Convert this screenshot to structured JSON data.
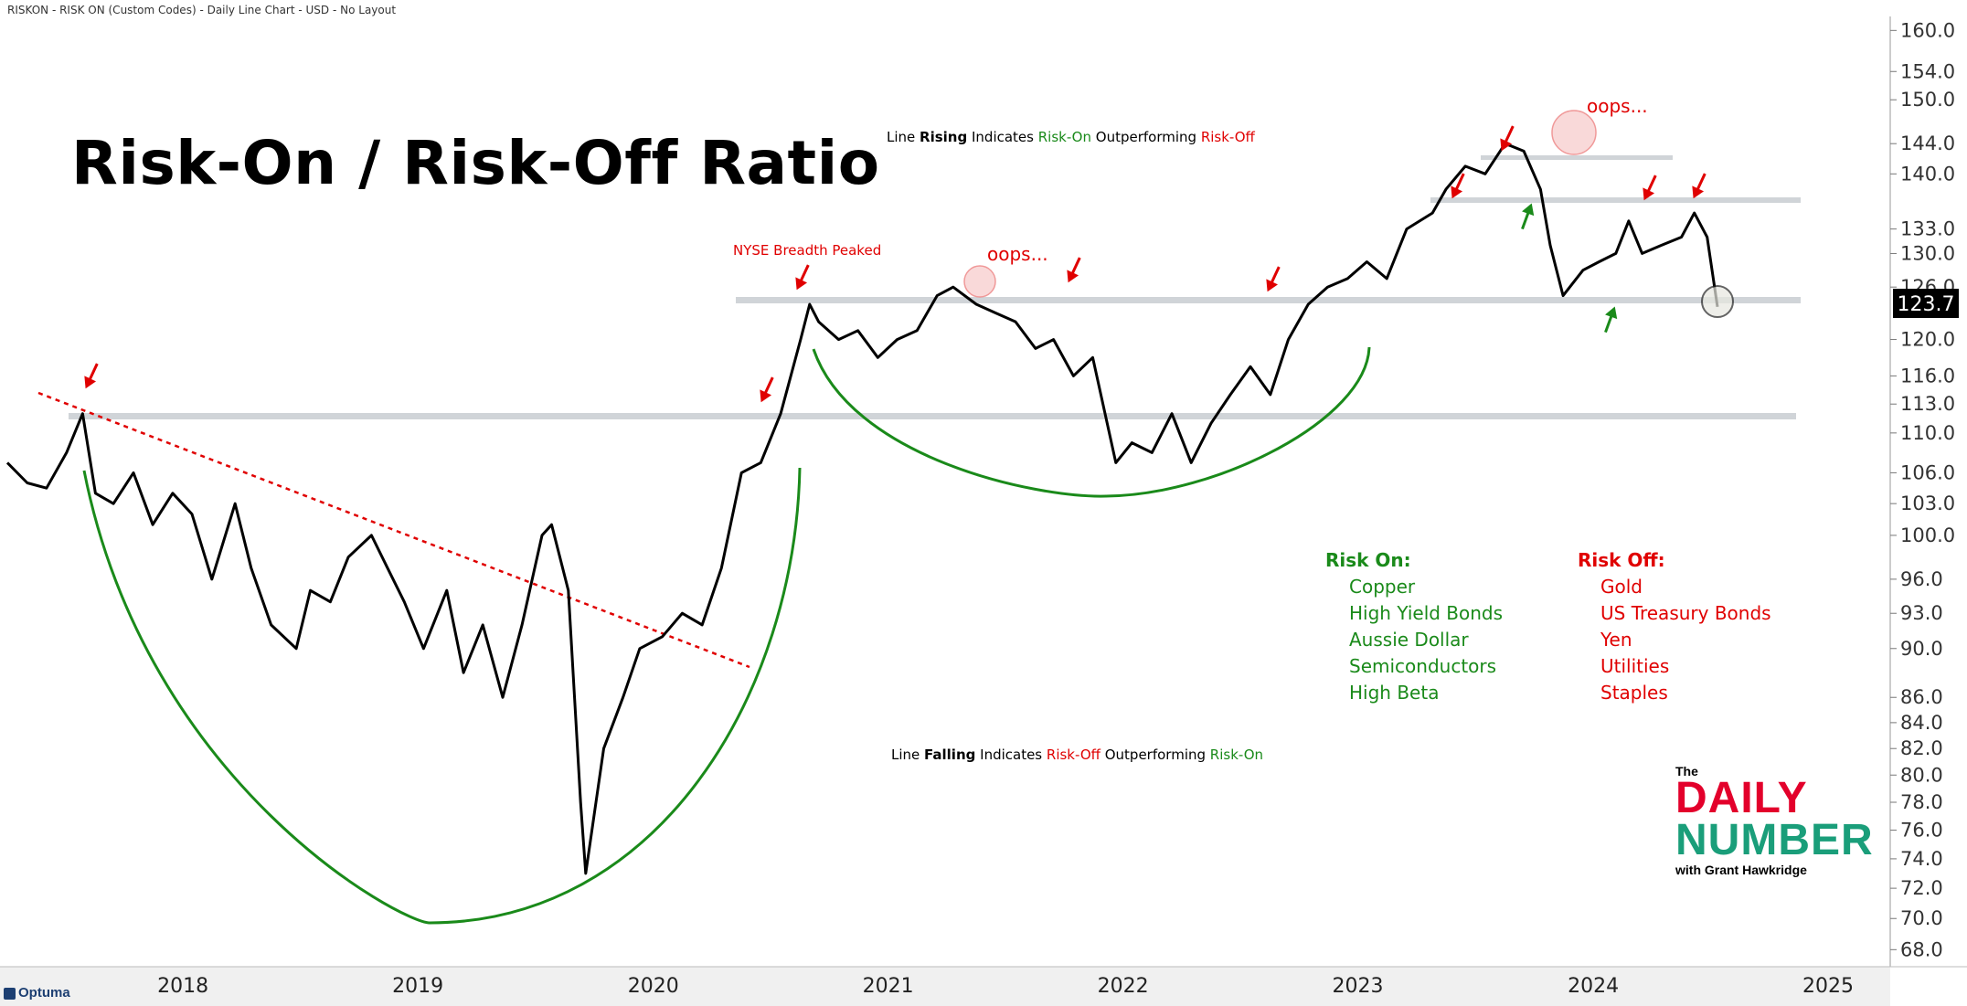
{
  "header": "RISKON - RISK ON (Custom Codes) - Daily Line Chart - USD - No Layout",
  "title": "Risk-On / Risk-Off Ratio",
  "notes": {
    "rising": {
      "a": "Line ",
      "b": "Rising",
      "c": " Indicates ",
      "d": "Risk-On",
      "e": " Outperforming ",
      "f": "Risk-Off"
    },
    "falling": {
      "a": "Line ",
      "b": "Falling",
      "c": " Indicates ",
      "d": "Risk-Off",
      "e": " Outperforming ",
      "f": "Risk-On"
    }
  },
  "annotations": {
    "breadth": "NYSE Breadth Peaked",
    "oops1": "oops...",
    "oops2": "oops..."
  },
  "legend": {
    "risk_on_title": "Risk On:",
    "risk_on": [
      "Copper",
      "High Yield Bonds",
      "Aussie Dollar",
      "Semiconductors",
      "High Beta"
    ],
    "risk_off_title": "Risk Off:",
    "risk_off": [
      "Gold",
      "US Treasury Bonds",
      "Yen",
      "Utilities",
      "Staples"
    ]
  },
  "logo": {
    "the": "The",
    "line1": "DAILY",
    "line2": "NUMBER",
    "byline": "with Grant Hawkridge"
  },
  "watermark": "Optuma",
  "colors": {
    "line": "#000000",
    "risk_on": "#1a8a1a",
    "risk_off": "#e00000",
    "level": "#d0d4d8",
    "last_value_bg": "#000000"
  },
  "chart_data": {
    "type": "line",
    "scale": "log",
    "ylim": [
      67.5,
      161
    ],
    "y_ticks": [
      "160.0",
      "154.0",
      "150.0",
      "144.0",
      "140.0",
      "133.0",
      "130.0",
      "126.0",
      "120.0",
      "116.0",
      "113.0",
      "110.0",
      "106.0",
      "103.0",
      "100.0",
      "96.0",
      "93.0",
      "90.0",
      "86.0",
      "84.0",
      "82.0",
      "80.0",
      "78.0",
      "76.0",
      "74.0",
      "72.0",
      "70.0",
      "68.0"
    ],
    "x_ticks": [
      "2018",
      "2019",
      "2020",
      "2021",
      "2022",
      "2023",
      "2024",
      "2025"
    ],
    "last_value": "123.7",
    "series": [
      {
        "x": [
          "2017-10-01",
          "2017-11-01",
          "2017-12-01",
          "2018-01-01",
          "2018-01-26",
          "2018-02-15",
          "2018-03-15",
          "2018-04-15",
          "2018-05-15",
          "2018-06-15",
          "2018-07-15",
          "2018-08-15",
          "2018-09-20",
          "2018-10-15",
          "2018-11-15",
          "2018-12-24",
          "2019-01-15",
          "2019-02-15",
          "2019-03-15",
          "2019-04-20",
          "2019-05-15",
          "2019-06-10",
          "2019-07-10",
          "2019-08-15",
          "2019-09-10",
          "2019-10-10",
          "2019-11-10",
          "2019-12-10",
          "2020-01-10",
          "2020-01-25",
          "2020-02-20",
          "2020-03-10",
          "2020-03-18",
          "2020-04-15",
          "2020-05-15",
          "2020-06-10",
          "2020-07-15",
          "2020-08-15",
          "2020-09-15",
          "2020-10-15",
          "2020-11-15",
          "2020-12-15",
          "2021-01-15",
          "2021-02-15",
          "2021-03-01",
          "2021-03-15",
          "2021-04-15",
          "2021-05-15",
          "2021-06-15",
          "2021-07-15",
          "2021-08-15",
          "2021-09-15",
          "2021-10-10",
          "2021-11-15",
          "2021-12-15",
          "2022-01-15",
          "2022-02-15",
          "2022-03-15",
          "2022-04-15",
          "2022-05-15",
          "2022-06-20",
          "2022-07-15",
          "2022-08-15",
          "2022-09-15",
          "2022-10-15",
          "2022-11-15",
          "2022-12-15",
          "2023-01-15",
          "2023-02-15",
          "2023-03-15",
          "2023-04-15",
          "2023-05-15",
          "2023-06-15",
          "2023-07-15",
          "2023-08-15",
          "2023-09-15",
          "2023-10-25",
          "2023-11-15",
          "2023-12-15",
          "2024-01-15",
          "2024-02-15",
          "2024-03-15",
          "2024-04-10",
          "2024-04-25",
          "2024-05-15",
          "2024-06-15",
          "2024-07-10",
          "2024-08-05",
          "2024-08-25",
          "2024-09-15",
          "2024-10-15",
          "2024-11-15",
          "2024-12-05",
          "2024-12-25",
          "2025-01-10"
        ],
        "y": [
          107,
          105,
          104.5,
          108,
          112,
          104,
          103,
          106,
          101,
          104,
          102,
          96,
          103,
          97,
          92,
          90,
          95,
          94,
          98,
          100,
          97,
          94,
          90,
          95,
          88,
          92,
          86,
          92,
          100,
          101,
          95,
          78,
          73,
          82,
          86,
          90,
          91,
          93,
          92,
          97,
          106,
          107,
          112,
          120,
          124,
          122,
          120,
          121,
          118,
          120,
          121,
          125,
          126,
          124,
          123,
          122,
          119,
          120,
          116,
          118,
          107,
          109,
          108,
          112,
          107,
          111,
          114,
          117,
          114,
          120,
          124,
          126,
          127,
          129,
          127,
          133,
          135,
          138,
          141,
          140,
          144,
          143,
          138,
          131,
          125,
          128,
          129,
          130,
          134,
          130,
          131,
          132,
          135,
          132,
          123.7
        ]
      }
    ]
  }
}
